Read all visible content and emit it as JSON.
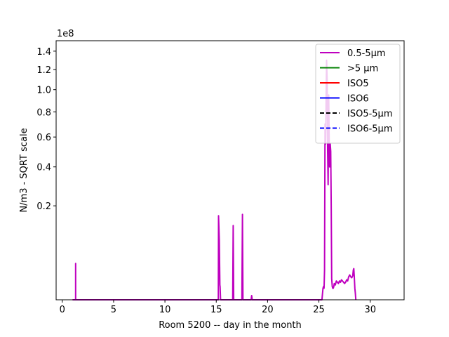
{
  "chart_data": {
    "type": "line",
    "xlabel": "Room 5200 -- day in the month",
    "ylabel": "N/m3 - SQRT scale",
    "y_scale": "sqrt",
    "y_offset_text": "1e8",
    "xlim": [
      -0.6,
      33.3
    ],
    "ylim": [
      0,
      1.52
    ],
    "x_ticks": [
      0,
      5,
      10,
      15,
      20,
      25,
      30
    ],
    "x_tick_labels": [
      "0",
      "5",
      "10",
      "15",
      "20",
      "25",
      "30"
    ],
    "y_ticks": [
      0.2,
      0.4,
      0.6,
      0.8,
      1.0,
      1.2,
      1.4
    ],
    "y_tick_labels": [
      "0.2",
      "0.4",
      "0.6",
      "0.8",
      "1.0",
      "1.2",
      "1.4"
    ],
    "grid": false,
    "legend_position": "top-right",
    "series": [
      {
        "name": "0.5-5μm",
        "color": "#bf00bf",
        "style": "solid",
        "x": [
          1.0,
          1.3,
          1.3,
          1.3,
          1.35,
          15.1,
          15.2,
          15.22,
          15.3,
          15.35,
          15.37,
          15.42,
          15.5,
          16.6,
          16.65,
          16.7,
          16.75,
          17.5,
          17.55,
          17.6,
          17.65,
          18.4,
          18.45,
          18.5,
          25.2,
          25.3,
          25.4,
          25.45,
          25.5,
          25.55,
          25.6,
          25.65,
          25.7,
          25.75,
          25.8,
          25.85,
          25.9,
          25.95,
          26.0,
          26.05,
          26.1,
          26.15,
          26.2,
          26.25,
          26.3,
          26.35,
          26.4,
          26.45,
          26.5,
          26.6,
          26.7,
          26.8,
          26.9,
          27.0,
          27.1,
          27.2,
          27.3,
          27.4,
          27.5,
          27.6,
          27.7,
          27.8,
          27.9,
          28.0,
          28.1,
          28.2,
          28.3,
          28.35,
          28.4,
          28.45,
          28.5,
          28.55,
          28.6
        ],
        "y": [
          0,
          0,
          0.03,
          0,
          0,
          0,
          0,
          0.16,
          0.08,
          0.005,
          0.004,
          0,
          0,
          0,
          0.125,
          0,
          0,
          0,
          0.165,
          0,
          0,
          0,
          0.0004,
          0,
          0,
          0,
          0.003,
          0.004,
          0.003,
          0.02,
          0.7,
          0.55,
          0.9,
          1.3,
          1.1,
          0.5,
          0.3,
          0.95,
          0.6,
          0.4,
          0.55,
          0.5,
          0.2,
          0.01,
          0.004,
          0.003,
          0.003,
          0.004,
          0.006,
          0.005,
          0.008,
          0.007,
          0.006,
          0.008,
          0.007,
          0.009,
          0.008,
          0.007,
          0.006,
          0.007,
          0.009,
          0.008,
          0.012,
          0.014,
          0.012,
          0.011,
          0.013,
          0.02,
          0.022,
          0.012,
          0.003,
          0.001,
          0
        ]
      },
      {
        "name": ">5 μm",
        "color": "#008000",
        "style": "solid",
        "x": [],
        "y": []
      },
      {
        "name": "ISO5",
        "color": "#ff0000",
        "style": "solid",
        "x": [],
        "y": []
      },
      {
        "name": "ISO6",
        "color": "#0000ff",
        "style": "solid",
        "x": [],
        "y": []
      },
      {
        "name": "ISO5-5μm",
        "color": "#000000",
        "style": "dashed",
        "x": [],
        "y": []
      },
      {
        "name": "ISO6-5μm",
        "color": "#0000ff",
        "style": "dashed",
        "x": [],
        "y": []
      }
    ]
  }
}
